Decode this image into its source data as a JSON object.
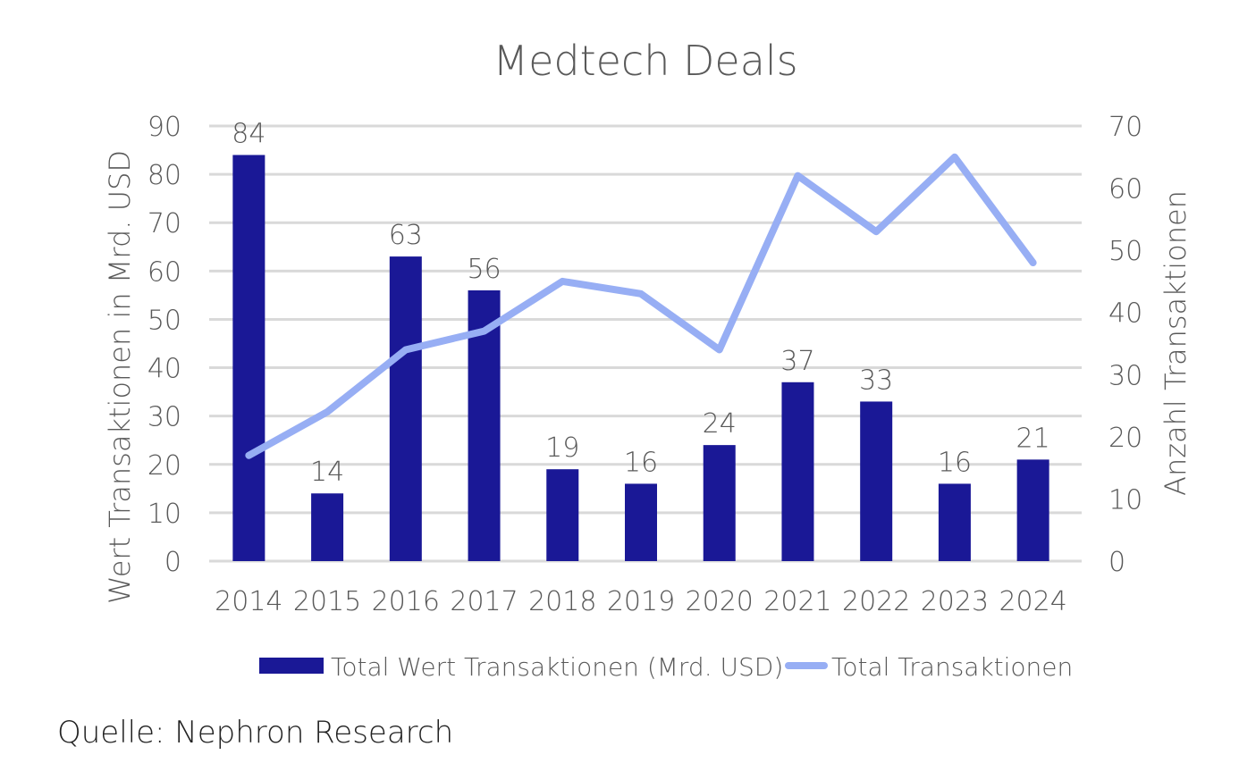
{
  "chart_data": {
    "type": "bar",
    "title": "Medtech Deals",
    "categories": [
      "2014",
      "2015",
      "2016",
      "2017",
      "2018",
      "2019",
      "2020",
      "2021",
      "2022",
      "2023",
      "2024"
    ],
    "series": [
      {
        "name": "Total Wert Transaktionen (Mrd. USD)",
        "type": "bar",
        "axis": "left",
        "color": "#1a1896",
        "values": [
          84,
          14,
          63,
          56,
          19,
          16,
          24,
          37,
          33,
          16,
          21
        ],
        "data_labels": true
      },
      {
        "name": "Total Transaktionen",
        "type": "line",
        "axis": "right",
        "color": "#97aef4",
        "values": [
          17,
          24,
          34,
          37,
          45,
          43,
          34,
          62,
          53,
          65,
          48
        ]
      }
    ],
    "ylabel": "Wert Transaktionen in Mrd. USD",
    "ylim": [
      0,
      90
    ],
    "yticks": [
      0,
      10,
      20,
      30,
      40,
      50,
      60,
      70,
      80,
      90
    ],
    "y2label": "Anzahl Transaktionen",
    "y2lim": [
      0,
      70
    ],
    "y2ticks": [
      0,
      10,
      20,
      30,
      40,
      50,
      60,
      70
    ],
    "grid": true,
    "legend": "bottom"
  },
  "source": "Quelle: Nephron Research"
}
